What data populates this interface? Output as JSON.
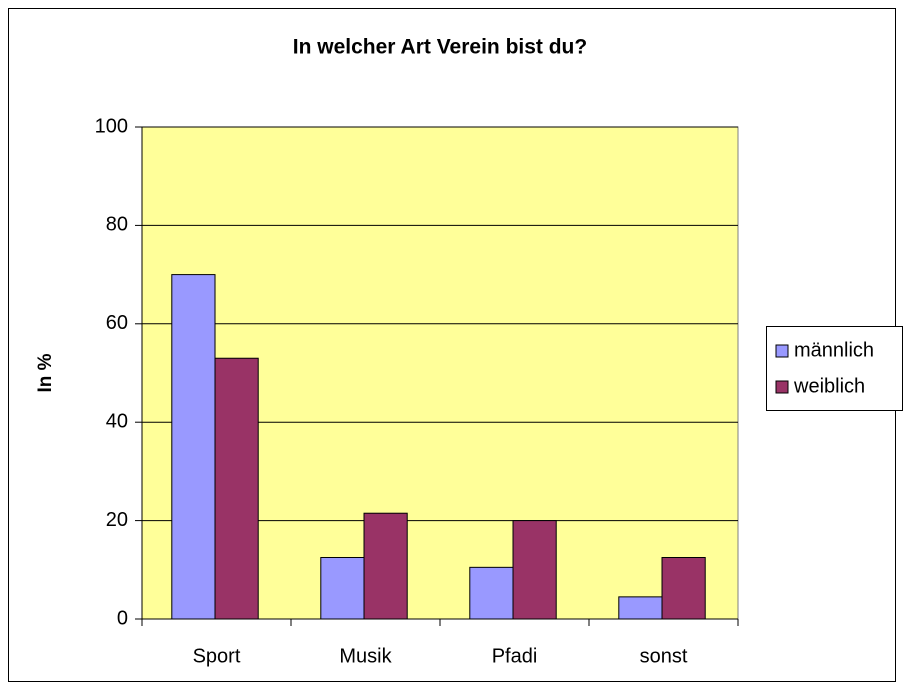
{
  "chart_data": {
    "type": "bar",
    "title": "In welcher Art Verein bist du?",
    "y_label": "In %",
    "categories": [
      "Sport",
      "Musik",
      "Pfadi",
      "sonst"
    ],
    "series": [
      {
        "name": "männlich",
        "color": "#9999ff",
        "values": [
          70,
          12.5,
          10.5,
          4.5
        ]
      },
      {
        "name": "weiblich",
        "color": "#993366",
        "values": [
          53,
          21.5,
          20,
          12.5
        ]
      }
    ],
    "ylim": [
      0,
      100
    ],
    "yticks": [
      0,
      20,
      40,
      60,
      80,
      100
    ],
    "grid": true,
    "legend": "right",
    "plot_background": "#ffff99"
  }
}
